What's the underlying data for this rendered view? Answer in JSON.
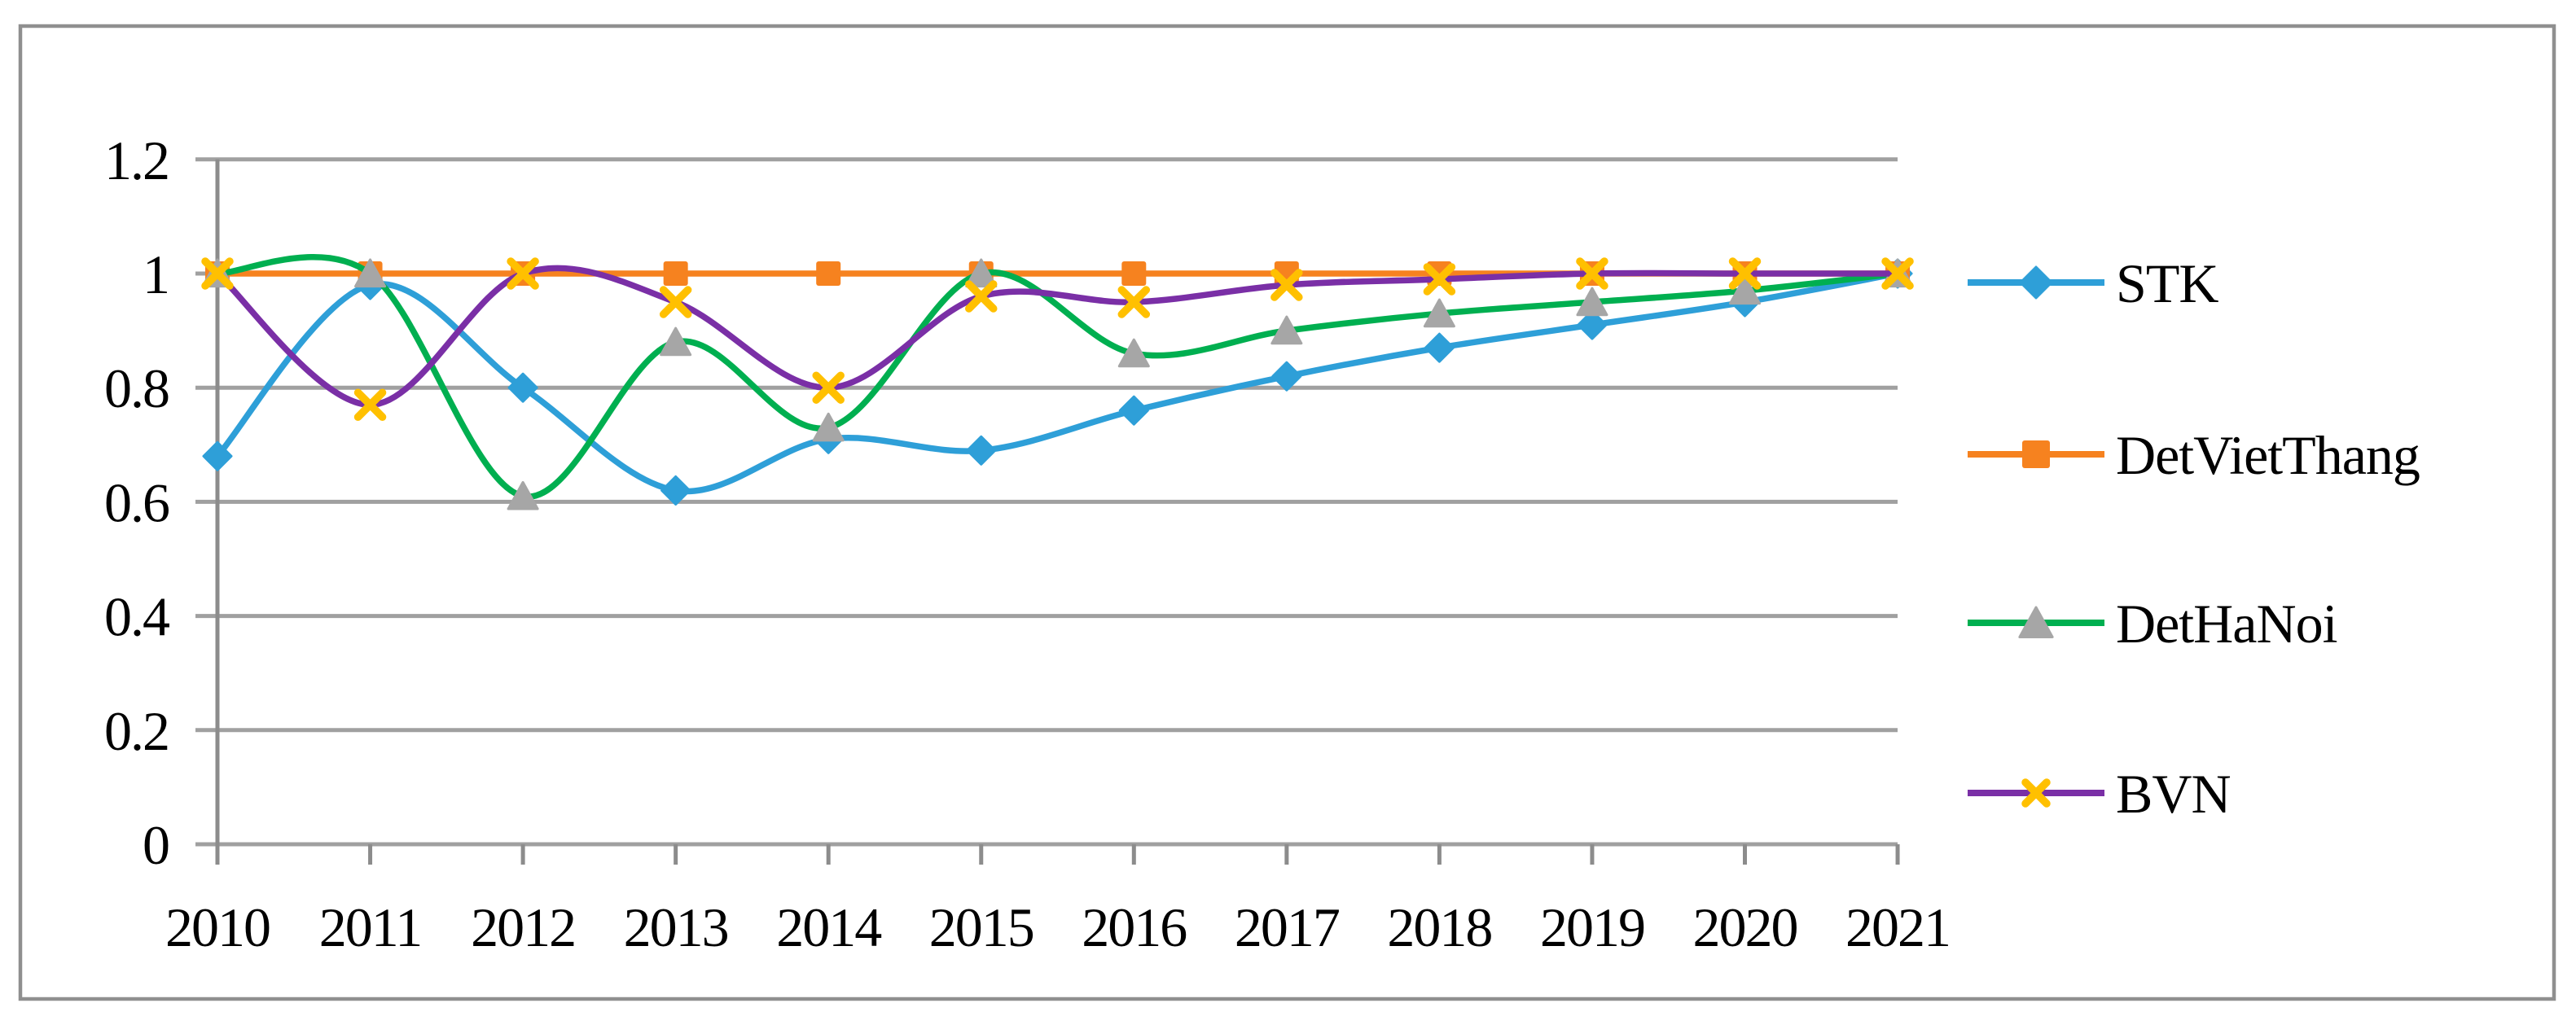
{
  "figure": {
    "background": "#FFFFFF",
    "border_color": "#8F8F8F"
  },
  "chart_data": {
    "type": "line",
    "smooth": true,
    "title": "",
    "xlabel": "",
    "ylabel": "",
    "grid": true,
    "legend_position": "right",
    "ylim": [
      0,
      1.2
    ],
    "yticks": {
      "values": [
        0,
        0.2,
        0.4,
        0.6,
        0.8,
        1,
        1.2
      ],
      "labels": [
        "0",
        "0.2",
        "0.4",
        "0.6",
        "0.8",
        "1",
        "1.2"
      ]
    },
    "categories": [
      "2010",
      "2011",
      "2012",
      "2013",
      "2014",
      "2015",
      "2016",
      "2017",
      "2018",
      "2019",
      "2020",
      "2021"
    ],
    "series": [
      {
        "name": "STK",
        "legend_label": "STK",
        "line_color": "#2E9FD8",
        "marker": "diamond",
        "marker_color": "#2E9FD8",
        "values": [
          0.68,
          0.98,
          0.8,
          0.62,
          0.71,
          0.69,
          0.76,
          0.82,
          0.87,
          0.91,
          0.95,
          1.0
        ]
      },
      {
        "name": "DetVietThang",
        "legend_label": " DetVietThang",
        "line_color": "#F6821F",
        "marker": "square",
        "marker_color": "#F6821F",
        "values": [
          1.0,
          1.0,
          1.0,
          1.0,
          1.0,
          1.0,
          1.0,
          1.0,
          1.0,
          1.0,
          1.0,
          1.0
        ]
      },
      {
        "name": "DetHaNoi",
        "legend_label": "DetHaNoi",
        "line_color": "#00AF50",
        "marker": "triangle",
        "marker_color": "#A6A6A6",
        "values": [
          1.0,
          1.0,
          0.61,
          0.88,
          0.73,
          1.0,
          0.86,
          0.9,
          0.93,
          0.95,
          0.97,
          1.0
        ]
      },
      {
        "name": "BVN",
        "legend_label": "BVN",
        "line_color": "#7A2FA6",
        "marker": "x",
        "marker_color": "#FFC000",
        "values": [
          1.0,
          0.77,
          1.0,
          0.95,
          0.8,
          0.96,
          0.95,
          0.98,
          0.99,
          1.0,
          1.0,
          1.0
        ]
      }
    ],
    "gridline_color": "#A0A0A0",
    "axis_color": "#8C8C8C",
    "text_color": "#000000"
  }
}
